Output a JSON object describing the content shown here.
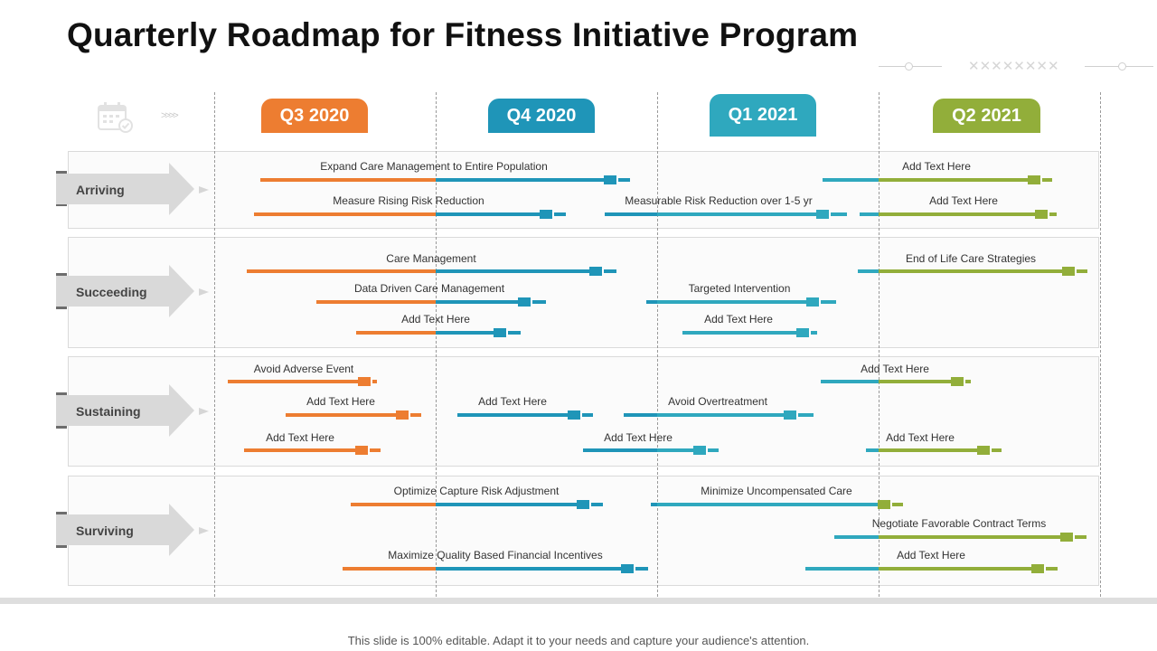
{
  "title": "Quarterly Roadmap for Fitness Initiative Program",
  "quarters": [
    {
      "label": "Q3 2020",
      "color": "#ED7D31"
    },
    {
      "label": "Q4 2020",
      "color": "#1F95B8"
    },
    {
      "label": "Q1 2021",
      "color": "#2FA8BE"
    },
    {
      "label": "Q2 2021",
      "color": "#92AE3A"
    }
  ],
  "phases": [
    {
      "label": "Arriving"
    },
    {
      "label": "Succeeding"
    },
    {
      "label": "Sustaining"
    },
    {
      "label": "Surviving"
    }
  ],
  "tasks": [
    {
      "text": "Expand Care Management to Entire Population"
    },
    {
      "text": "Measure Rising Risk Reduction"
    },
    {
      "text": "Measurable Risk Reduction over 1-5 yr"
    },
    {
      "text": "Add Text Here"
    },
    {
      "text": "Add Text Here"
    },
    {
      "text": "Care Management"
    },
    {
      "text": "Data Driven Care Management"
    },
    {
      "text": "Add Text Here"
    },
    {
      "text": "Targeted Intervention"
    },
    {
      "text": "Add Text Here"
    },
    {
      "text": "End of Life Care Strategies"
    },
    {
      "text": "Avoid Adverse Event"
    },
    {
      "text": "Add Text Here"
    },
    {
      "text": "Add Text Here"
    },
    {
      "text": "Add Text Here"
    },
    {
      "text": "Avoid Overtreatment"
    },
    {
      "text": "Add Text Here"
    },
    {
      "text": "Add Text Here"
    },
    {
      "text": "Add Text Here"
    },
    {
      "text": "Optimize Capture Risk Adjustment"
    },
    {
      "text": "Maximize Quality Based Financial Incentives"
    },
    {
      "text": "Minimize Uncompensated Care"
    },
    {
      "text": "Negotiate Favorable Contract Terms"
    },
    {
      "text": "Add Text Here"
    }
  ],
  "footer": "This slide is 100% editable. Adapt it to your needs and capture your audience's attention."
}
